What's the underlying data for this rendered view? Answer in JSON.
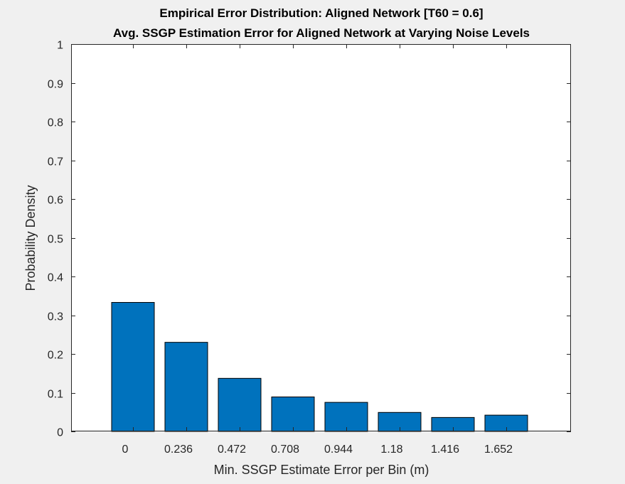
{
  "chart_data": {
    "type": "bar",
    "title": "Empirical Error Distribution: Aligned Network [T60 = 0.6]",
    "subtitle": "Avg. SSGP Estimation Error for Aligned Network at Varying Noise Levels",
    "xlabel": "Min. SSGP Estimate Error per Bin (m)",
    "ylabel": "Probability Density",
    "categories": [
      "0",
      "0.236",
      "0.472",
      "0.708",
      "0.944",
      "1.18",
      "1.416",
      "1.652"
    ],
    "values": [
      0.333,
      0.23,
      0.137,
      0.089,
      0.075,
      0.049,
      0.036,
      0.042
    ],
    "ylim": [
      0,
      1
    ],
    "yticks": [
      "0",
      "0.1",
      "0.2",
      "0.3",
      "0.4",
      "0.5",
      "0.6",
      "0.7",
      "0.8",
      "0.9",
      "1"
    ],
    "grid": false,
    "colors": {
      "bar": "#0072BD",
      "bar_edge": "#000000",
      "axes_bg": "#ffffff",
      "figure_bg": "#f0f0f0",
      "axis": "#262626"
    }
  }
}
